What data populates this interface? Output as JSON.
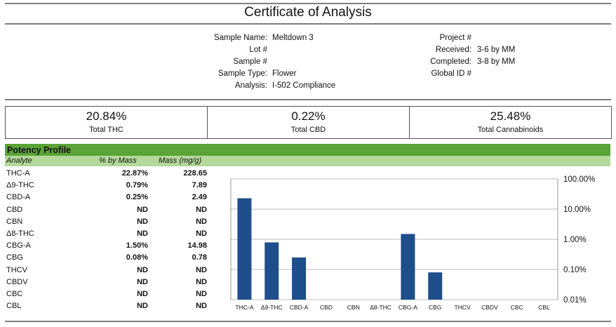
{
  "title": "Certificate of Analysis",
  "sample": {
    "fields": [
      {
        "label": "Sample Name:",
        "value": "Meltdown 3"
      },
      {
        "label": "Lot #",
        "value": ""
      },
      {
        "label": "Sample #",
        "value": ""
      },
      {
        "label": "Sample Type:",
        "value": "Flower"
      },
      {
        "label": "Analysis:",
        "value": "I-502 Compliance"
      }
    ],
    "project_fields": [
      {
        "label": "Project #",
        "value": ""
      },
      {
        "label": "Received:",
        "value": "3-6 by MM"
      },
      {
        "label": "Completed:",
        "value": "3-8 by MM"
      },
      {
        "label": "Global ID #",
        "value": ""
      }
    ]
  },
  "summary": [
    {
      "value": "20.84%",
      "label": "Total THC"
    },
    {
      "value": "0.22%",
      "label": "Total CBD"
    },
    {
      "value": "25.48%",
      "label": "Total Cannabinoids"
    }
  ],
  "potency": {
    "heading": "Potency Profile",
    "columns": [
      "Analyte",
      "% by Mass",
      "Mass (mg/g)"
    ],
    "rows": [
      {
        "analyte": "THC-A",
        "pct": "22.87%",
        "mass": "228.65"
      },
      {
        "analyte": "Δ9-THC",
        "pct": "0.79%",
        "mass": "7.89"
      },
      {
        "analyte": "CBD-A",
        "pct": "0.25%",
        "mass": "2.49"
      },
      {
        "analyte": "CBD",
        "pct": "ND",
        "mass": "ND"
      },
      {
        "analyte": "CBN",
        "pct": "ND",
        "mass": "ND"
      },
      {
        "analyte": "Δ8-THC",
        "pct": "ND",
        "mass": "ND"
      },
      {
        "analyte": "CBG-A",
        "pct": "1.50%",
        "mass": "14.98"
      },
      {
        "analyte": "CBG",
        "pct": "0.08%",
        "mass": "0.78"
      },
      {
        "analyte": "THCV",
        "pct": "ND",
        "mass": "ND"
      },
      {
        "analyte": "CBDV",
        "pct": "ND",
        "mass": "ND"
      },
      {
        "analyte": "CBC",
        "pct": "ND",
        "mass": "ND"
      },
      {
        "analyte": "CBL",
        "pct": "ND",
        "mass": "ND"
      }
    ]
  },
  "chart_data": {
    "type": "bar",
    "categories": [
      "THC-A",
      "Δ9-THC",
      "CBD-A",
      "CBD",
      "CBN",
      "Δ8-THC",
      "CBG-A",
      "CBG",
      "THCV",
      "CBDV",
      "CBC",
      "CBL"
    ],
    "values": [
      22.87,
      0.79,
      0.25,
      null,
      null,
      null,
      1.5,
      0.08,
      null,
      null,
      null,
      null
    ],
    "y_scale": "log",
    "ylim": [
      0.01,
      100
    ],
    "yticks": [
      "100.00%",
      "10.00%",
      "1.00%",
      "0.10%",
      "0.01%"
    ],
    "ytick_values": [
      100,
      10,
      1,
      0.1,
      0.01
    ],
    "grid": true,
    "bar_color": "#1f4e8c"
  }
}
